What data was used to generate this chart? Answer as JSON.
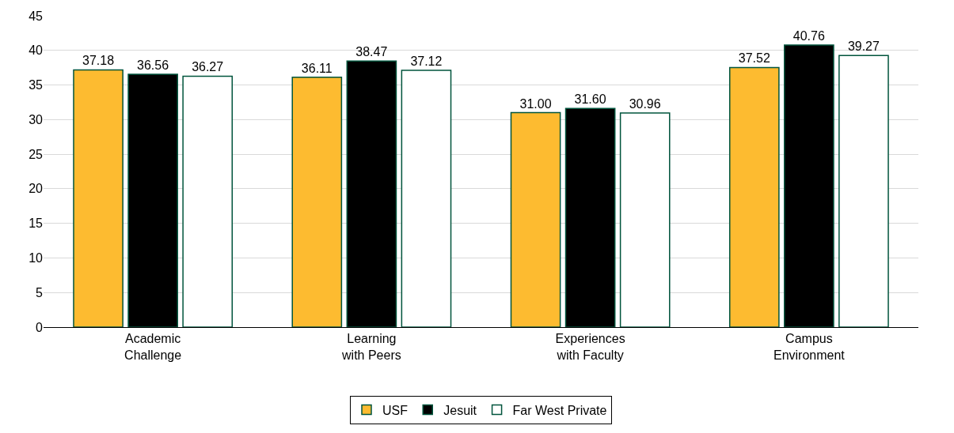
{
  "chart_data": {
    "type": "bar",
    "categories": [
      "Academic Challenge",
      "Learning with Peers",
      "Experiences with Faculty",
      "Campus Environment"
    ],
    "series": [
      {
        "name": "USF",
        "color": "#fdbb30",
        "values": [
          37.18,
          36.11,
          31.0,
          37.52
        ],
        "value_labels": [
          "37.18",
          "36.11",
          "31.00",
          "37.52"
        ]
      },
      {
        "name": "Jesuit",
        "color": "#000000",
        "values": [
          36.56,
          38.47,
          31.6,
          40.76
        ],
        "value_labels": [
          "36.56",
          "38.47",
          "31.60",
          "40.76"
        ]
      },
      {
        "name": "Far West Private",
        "color": "#ffffff",
        "values": [
          36.27,
          37.12,
          30.96,
          39.27
        ],
        "value_labels": [
          "36.27",
          "37.12",
          "30.96",
          "39.27"
        ]
      }
    ],
    "ylim": [
      0,
      45
    ],
    "yticks": [
      0,
      5,
      10,
      15,
      20,
      25,
      30,
      35,
      40,
      45
    ],
    "grid": "y",
    "legend": "bottom"
  }
}
